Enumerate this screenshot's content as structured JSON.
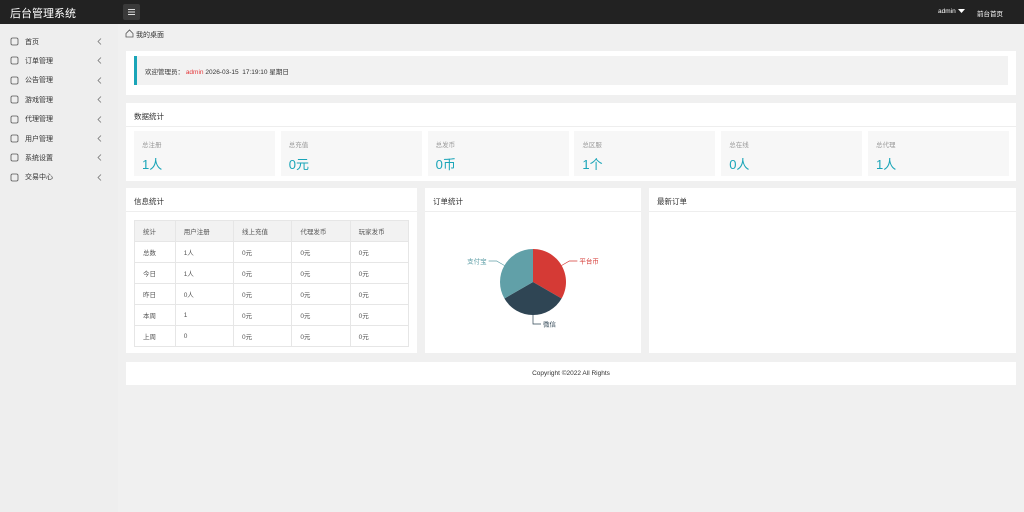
{
  "header": {
    "title": "后台管理系统",
    "user": "admin",
    "link": "前台首页"
  },
  "sidebar": {
    "items": [
      "首页",
      "订单管理",
      "公告管理",
      "游戏管理",
      "代理管理",
      "用户管理",
      "系统设置",
      "交易中心"
    ]
  },
  "breadcrumb": "我的桌面",
  "welcome": {
    "prefix": "欢迎管理员：",
    "user": "admin",
    "datetime": "2026-03-15  17:19:10",
    "weekday": "星期日"
  },
  "stats": {
    "title": "数据统计",
    "items": [
      {
        "label": "总注册",
        "value": "1人"
      },
      {
        "label": "总充值",
        "value": "0元"
      },
      {
        "label": "总发币",
        "value": "0币"
      },
      {
        "label": "总区服",
        "value": "1个"
      },
      {
        "label": "总在线",
        "value": "0人"
      },
      {
        "label": "总代理",
        "value": "1人"
      }
    ]
  },
  "info": {
    "title": "信息统计",
    "table": {
      "header": [
        "统计",
        "用户注册",
        "线上充值",
        "代理发币",
        "玩家发币"
      ],
      "rows": [
        [
          "总数",
          "1人",
          "0元",
          "0元",
          "0元"
        ],
        [
          "今日",
          "1人",
          "0元",
          "0元",
          "0元"
        ],
        [
          "昨日",
          "0人",
          "0元",
          "0元",
          "0元"
        ],
        [
          "本周",
          "1",
          "0元",
          "0元",
          "0元"
        ],
        [
          "上周",
          "0",
          "0元",
          "0元",
          "0元"
        ]
      ]
    }
  },
  "orders": {
    "type": "pie",
    "title": "订单统计",
    "categories": [
      "平台币",
      "微信",
      "支付宝"
    ],
    "values": [
      1,
      1,
      1
    ],
    "colors": [
      "#d53a35",
      "#2f4554",
      "#61a0a8"
    ]
  },
  "latest": {
    "title": "最新订单"
  },
  "footer": "Copyright ©2022 All Rights"
}
